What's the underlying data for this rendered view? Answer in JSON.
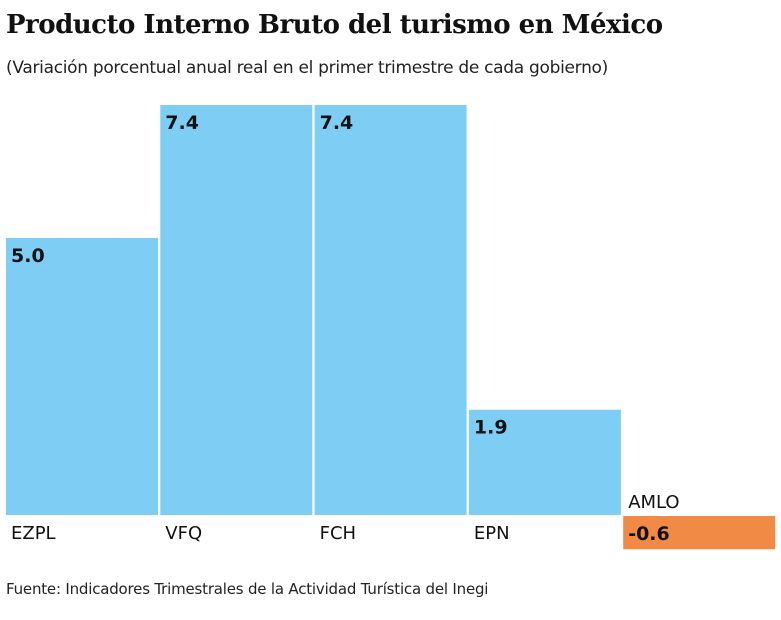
{
  "chart_data": {
    "type": "bar",
    "title": "Producto Interno Bruto del turismo en México",
    "subtitle": "(Variación porcentual anual real en el primer trimestre de cada gobierno)",
    "categories": [
      "EZPL",
      "VFQ",
      "FCH",
      "EPN",
      "AMLO"
    ],
    "values": [
      5.0,
      7.4,
      7.4,
      1.9,
      -0.6
    ],
    "value_labels": [
      "5.0",
      "7.4",
      "7.4",
      "1.9",
      "-0.6"
    ],
    "xlabel": "",
    "ylabel": "",
    "grid": false,
    "colors": {
      "positive": "#7ecdf5",
      "negative": "#f08a44",
      "text": "#111111"
    },
    "source": "Fuente: Indicadores Trimestrales de la Actividad Turística del Inegi"
  }
}
